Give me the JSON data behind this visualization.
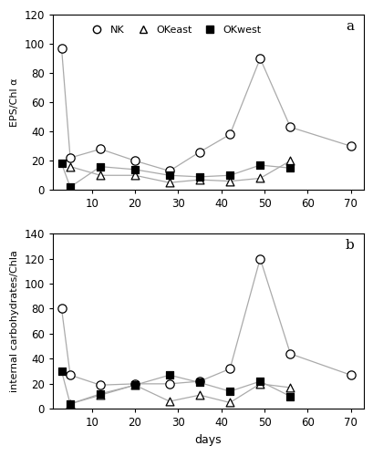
{
  "panel_a": {
    "title_label": "a",
    "ylabel": "EPS/Chl α",
    "ylabel_text": "EPS/Chl a",
    "ylim": [
      0,
      120
    ],
    "yticks": [
      0,
      20,
      40,
      60,
      80,
      100,
      120
    ],
    "NK": {
      "x": [
        3,
        5,
        12,
        20,
        28,
        35,
        42,
        49,
        56,
        70
      ],
      "y": [
        97,
        22,
        28,
        20,
        13,
        26,
        38,
        90,
        43,
        30
      ]
    },
    "OKeast": {
      "x": [
        5,
        12,
        20,
        28,
        35,
        42,
        49,
        56
      ],
      "y": [
        16,
        10,
        10,
        5,
        7,
        6,
        8,
        20
      ]
    },
    "OKwest": {
      "x": [
        3,
        5,
        12,
        20,
        28,
        35,
        42,
        49,
        56
      ],
      "y": [
        18,
        2,
        16,
        14,
        10,
        9,
        10,
        17,
        15
      ]
    }
  },
  "panel_b": {
    "title_label": "b",
    "ylabel": "internal carbohydrates/Chla",
    "ylim": [
      0,
      140
    ],
    "yticks": [
      0,
      20,
      40,
      60,
      80,
      100,
      120,
      140
    ],
    "NK": {
      "x": [
        3,
        5,
        12,
        20,
        28,
        35,
        42,
        49,
        56,
        70
      ],
      "y": [
        80,
        27,
        19,
        20,
        20,
        22,
        32,
        120,
        44,
        27
      ]
    },
    "OKeast": {
      "x": [
        5,
        12,
        20,
        28,
        35,
        42,
        49,
        56
      ],
      "y": [
        4,
        11,
        19,
        6,
        11,
        5,
        20,
        17
      ]
    },
    "OKwest": {
      "x": [
        3,
        5,
        12,
        20,
        28,
        35,
        42,
        49,
        56
      ],
      "y": [
        30,
        4,
        12,
        19,
        27,
        21,
        14,
        22,
        10
      ]
    }
  },
  "xlabel": "days",
  "xlim": [
    1,
    73
  ],
  "xticks": [
    10,
    20,
    30,
    40,
    50,
    60,
    70
  ],
  "line_color": "#aaaaaa",
  "background_color": "#ffffff",
  "figure_border_color": "#000000"
}
